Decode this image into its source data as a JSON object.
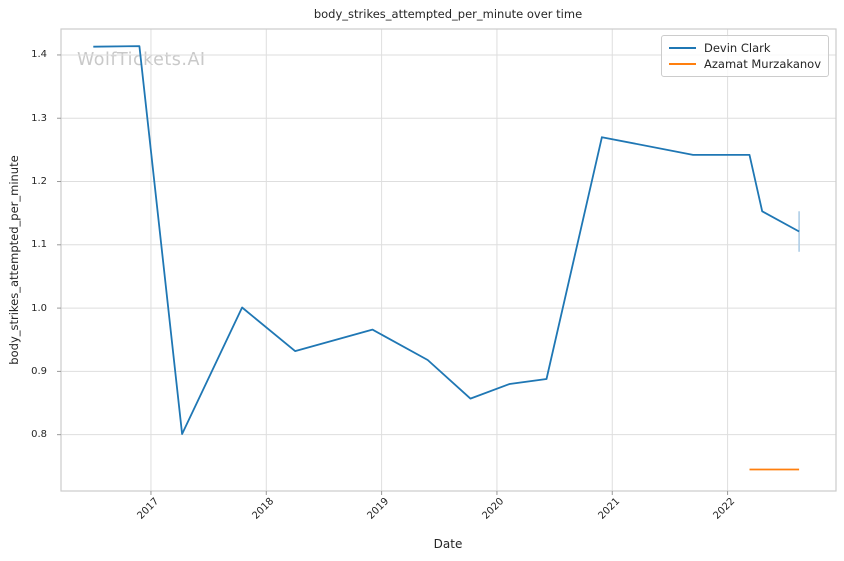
{
  "chart": {
    "title": "body_strikes_attempted_per_minute over time",
    "watermark": "WolfTickets.AI",
    "xlabel": "Date",
    "ylabel": "body_strikes_attempted_per_minute"
  },
  "chart_data": {
    "type": "line",
    "title": "body_strikes_attempted_per_minute over time",
    "xlabel": "Date",
    "ylabel": "body_strikes_attempted_per_minute",
    "xlim": [
      2016.22,
      2022.94
    ],
    "ylim": [
      0.711,
      1.441
    ],
    "xticks": [
      2017,
      2018,
      2019,
      2020,
      2021,
      2022
    ],
    "xtick_labels": [
      "2017",
      "2018",
      "2019",
      "2020",
      "2021",
      "2022"
    ],
    "yticks": [
      0.8,
      0.9,
      1.0,
      1.1,
      1.2,
      1.3,
      1.4
    ],
    "ytick_labels": [
      "0.8",
      "0.9",
      "1.0",
      "1.1",
      "1.2",
      "1.3",
      "1.4"
    ],
    "grid": true,
    "legend_position": "upper right",
    "series": [
      {
        "name": "Devin Clark",
        "color": "#1f77b4",
        "x": [
          2016.5,
          2016.9,
          2017.27,
          2017.79,
          2018.25,
          2018.92,
          2019.4,
          2019.77,
          2020.11,
          2020.43,
          2020.91,
          2021.7,
          2022.19,
          2022.3,
          2022.62
        ],
        "y": [
          1.413,
          1.414,
          0.801,
          1.001,
          0.932,
          0.966,
          0.918,
          0.857,
          0.88,
          0.888,
          1.27,
          1.242,
          1.242,
          1.153,
          1.121
        ],
        "error_bar_last": {
          "x": 2022.62,
          "y_low": 1.089,
          "y_high": 1.153,
          "color": "#aecde6"
        }
      },
      {
        "name": "Azamat Murzakanov",
        "color": "#ff7f0e",
        "x": [
          2022.19,
          2022.62
        ],
        "y": [
          0.745,
          0.745
        ]
      }
    ]
  },
  "style_colors": {
    "grid": "#dedede",
    "spine": "#cccccc",
    "tick_mark": "#999999",
    "text": "#262626",
    "watermark": "#c9c9c9"
  }
}
